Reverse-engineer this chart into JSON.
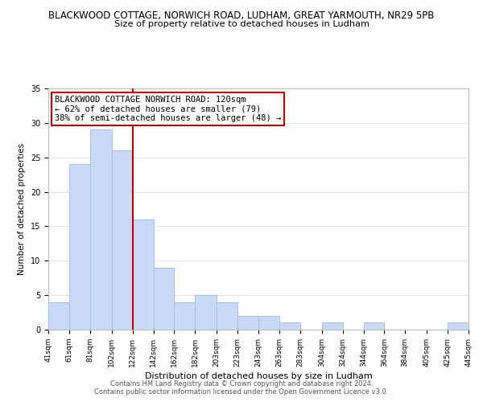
{
  "title_line1": "BLACKWOOD COTTAGE, NORWICH ROAD, LUDHAM, GREAT YARMOUTH, NR29 5PB",
  "title_line2": "Size of property relative to detached houses in Ludham",
  "xlabel": "Distribution of detached houses by size in Ludham",
  "ylabel": "Number of detached properties",
  "bar_left_edges": [
    41,
    61,
    81,
    102,
    122,
    142,
    162,
    182,
    203,
    223,
    243,
    263,
    283,
    304,
    324,
    344,
    364,
    384,
    405,
    425
  ],
  "bar_widths": [
    20,
    20,
    21,
    20,
    20,
    20,
    20,
    21,
    20,
    20,
    20,
    20,
    21,
    20,
    20,
    20,
    20,
    21,
    20,
    20
  ],
  "bar_heights": [
    4,
    24,
    29,
    26,
    16,
    9,
    4,
    5,
    4,
    2,
    2,
    1,
    0,
    1,
    0,
    1,
    0,
    0,
    0,
    1
  ],
  "bar_color": "#c9daf8",
  "bar_edge_color": "#a4bfe0",
  "reference_line_x": 122,
  "reference_line_color": "#cc0000",
  "ylim": [
    0,
    35
  ],
  "yticks": [
    0,
    5,
    10,
    15,
    20,
    25,
    30,
    35
  ],
  "xtick_labels": [
    "41sqm",
    "61sqm",
    "81sqm",
    "102sqm",
    "122sqm",
    "142sqm",
    "162sqm",
    "182sqm",
    "203sqm",
    "223sqm",
    "243sqm",
    "263sqm",
    "283sqm",
    "304sqm",
    "324sqm",
    "344sqm",
    "364sqm",
    "384sqm",
    "405sqm",
    "425sqm",
    "445sqm"
  ],
  "annotation_title": "BLACKWOOD COTTAGE NORWICH ROAD: 120sqm",
  "annotation_line2": "← 62% of detached houses are smaller (79)",
  "annotation_line3": "38% of semi-detached houses are larger (48) →",
  "annotation_box_color": "#cc0000",
  "footer_line1": "Contains HM Land Registry data © Crown copyright and database right 2024.",
  "footer_line2": "Contains public sector information licensed under the Open Government Licence v3.0.",
  "background_color": "#ffffff",
  "grid_color": "#dce6f1"
}
